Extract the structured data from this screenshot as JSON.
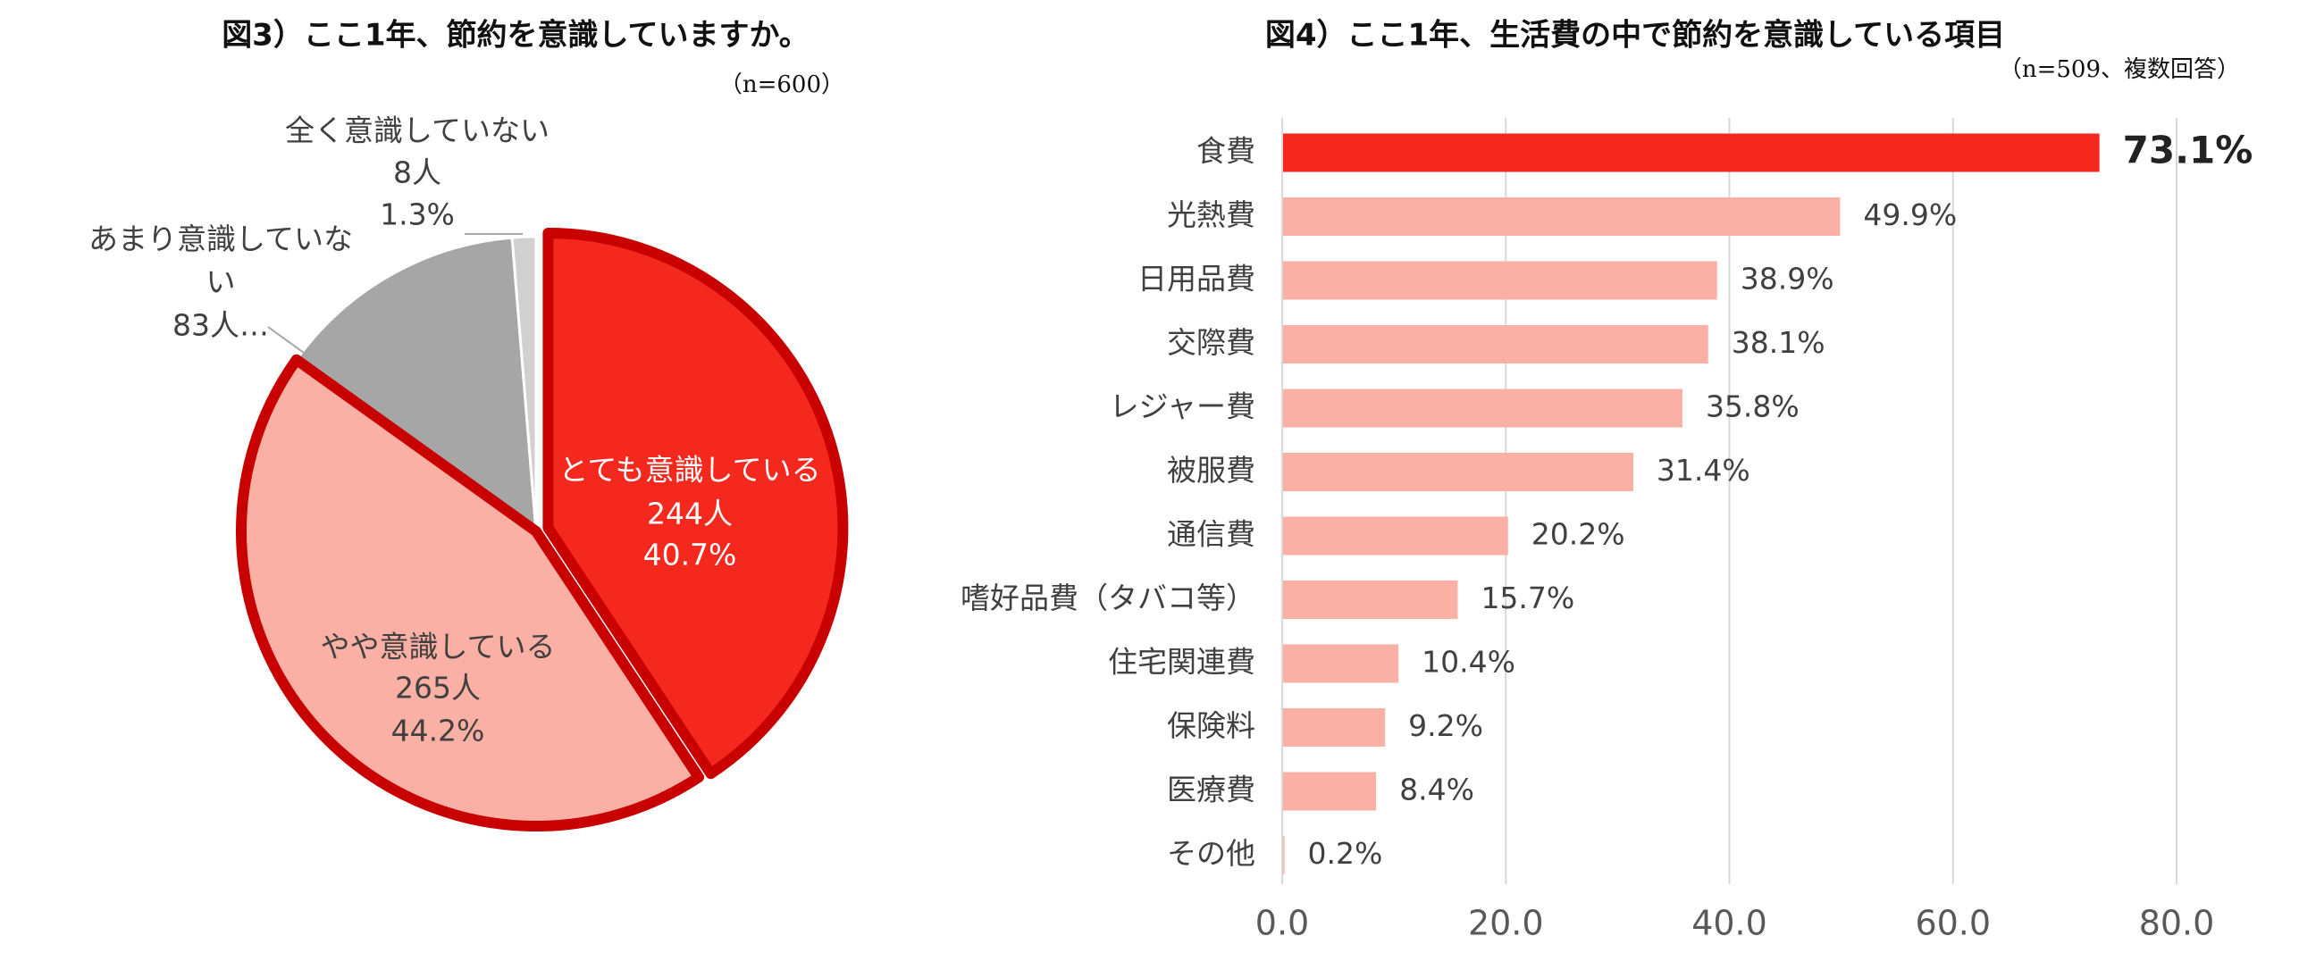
{
  "chart_data": [
    {
      "type": "pie",
      "title": "図3）ここ1年、節約を意識していますか。",
      "subtitle": "（n=600）",
      "categories": [
        "とても意識している",
        "やや意識している",
        "あまり意識していない",
        "全く意識していない"
      ],
      "values": [
        40.7,
        44.2,
        13.8,
        1.3
      ],
      "value_labels": [
        "40.7%",
        "44.2%",
        null,
        "1.3%"
      ],
      "counts": [
        244,
        265,
        83,
        8
      ],
      "count_labels": [
        "244人",
        "265人",
        "83人…",
        "8人"
      ],
      "colors": [
        "#f5281e",
        "#fbb0a5",
        "#a6a6a6",
        "#d0d0d0"
      ],
      "edge_colors": [
        "#c80000",
        "#c80000",
        "#ffffff",
        "#ffffff"
      ]
    },
    {
      "type": "hbar",
      "title": "図4）ここ1年、生活費の中で節約を意識している項目",
      "subtitle": "（n=509、複数回答）",
      "categories": [
        "食費",
        "光熱費",
        "日用品費",
        "交際費",
        "レジャー費",
        "被服費",
        "通信費",
        "嗜好品費（タバコ等）",
        "住宅関連費",
        "保険料",
        "医療費",
        "その他"
      ],
      "values": [
        73.1,
        49.9,
        38.9,
        38.1,
        35.8,
        31.4,
        20.2,
        15.7,
        10.4,
        9.2,
        8.4,
        0.2
      ],
      "value_labels": [
        "73.1%",
        "49.9%",
        "38.9%",
        "38.1%",
        "35.8%",
        "31.4%",
        "20.2%",
        "15.7%",
        "10.4%",
        "9.2%",
        "8.4%",
        "0.2%"
      ],
      "colors": [
        "#f5281e",
        "#fbb0a5",
        "#fbb0a5",
        "#fbb0a5",
        "#fbb0a5",
        "#fbb0a5",
        "#fbb0a5",
        "#fbb0a5",
        "#fbb0a5",
        "#fbb0a5",
        "#fbb0a5",
        "#fbb0a5"
      ],
      "xlim": [
        0,
        80
      ],
      "xticks": [
        {
          "value": 0,
          "label": "0.0"
        },
        {
          "value": 20,
          "label": "20.0"
        },
        {
          "value": 40,
          "label": "40.0"
        },
        {
          "value": 60,
          "label": "60.0"
        },
        {
          "value": 80,
          "label": "80.0"
        }
      ],
      "grid": true
    }
  ]
}
